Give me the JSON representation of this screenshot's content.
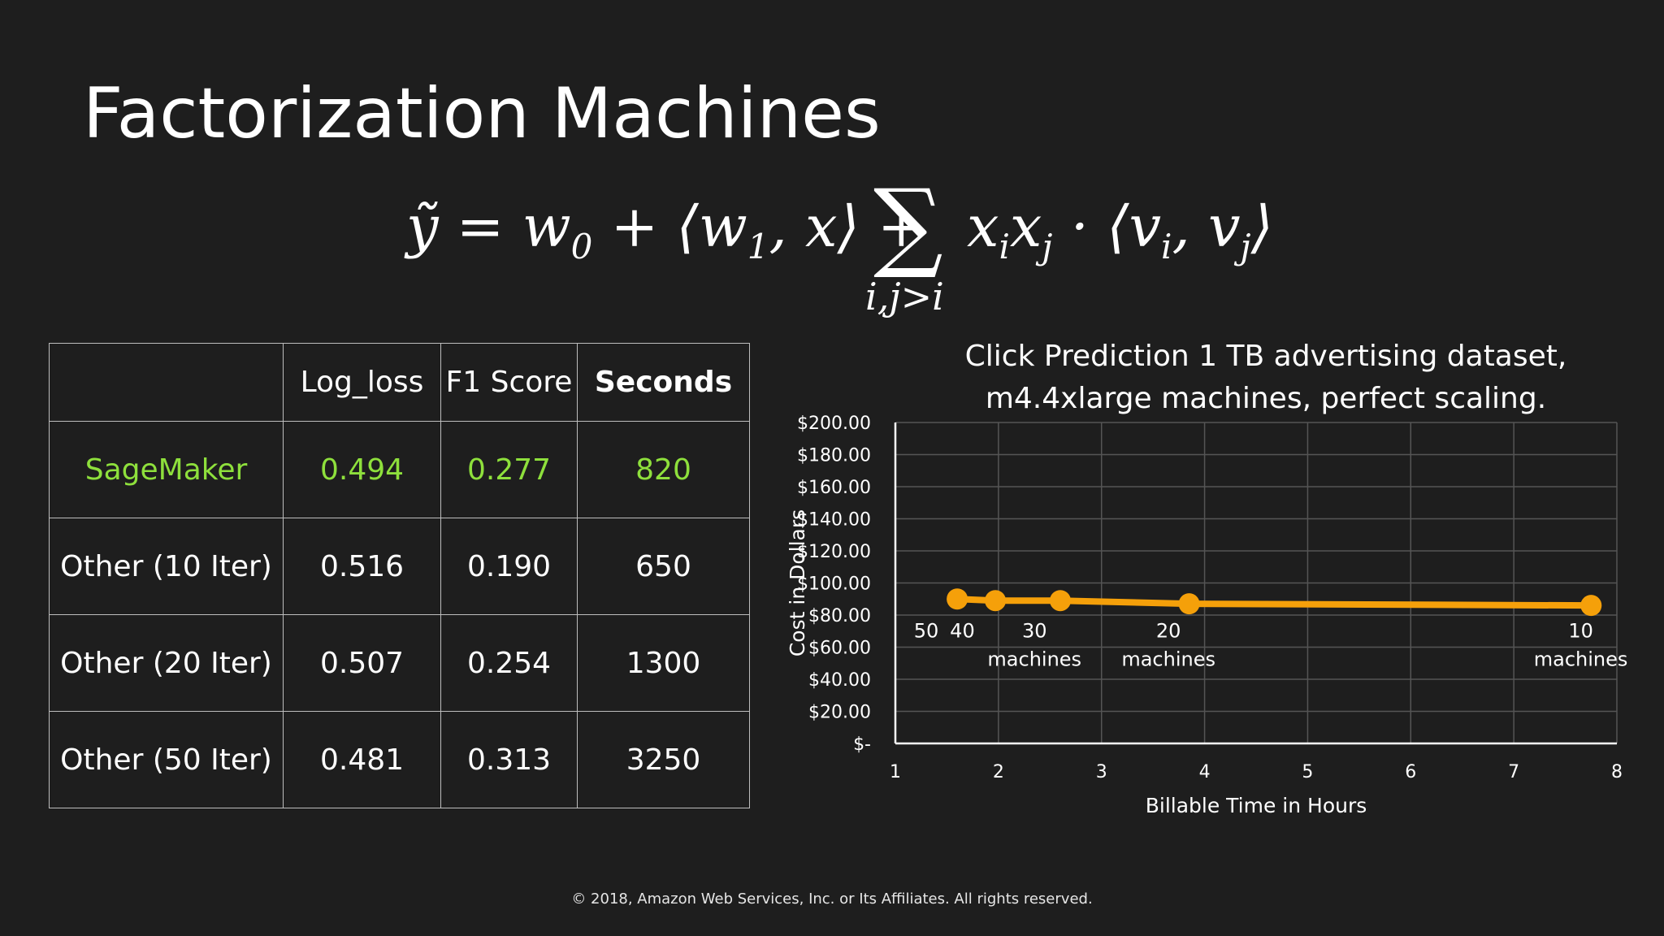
{
  "title": "Factorization Machines",
  "formula": {
    "main": "ỹ = w0 + ⟨w1, x⟩ +",
    "sigma": "∑",
    "under": "i,j>i",
    "rest": "xixj · ⟨vi, vj⟩"
  },
  "table": {
    "headers": [
      "",
      "Log_loss",
      "F1 Score",
      "Seconds"
    ],
    "rows": [
      {
        "name": "SageMaker",
        "log_loss": "0.494",
        "f1": "0.277",
        "seconds": "820"
      },
      {
        "name": "Other (10 Iter)",
        "log_loss": "0.516",
        "f1": "0.190",
        "seconds": "650"
      },
      {
        "name": "Other (20 Iter)",
        "log_loss": "0.507",
        "f1": "0.254",
        "seconds": "1300"
      },
      {
        "name": "Other (50 Iter)",
        "log_loss": "0.481",
        "f1": "0.313",
        "seconds": "3250"
      }
    ],
    "highlight_color": "#8ee03c"
  },
  "chart_data": {
    "type": "line",
    "title_lines": [
      "Click Prediction 1 TB advertising dataset,",
      "m4.4xlarge machines, perfect scaling."
    ],
    "xlabel": "Billable Time in Hours",
    "ylabel": "Cost in Dollars",
    "xlim": [
      1,
      8
    ],
    "ylim": [
      0,
      200
    ],
    "x_ticks": [
      "1",
      "2",
      "3",
      "4",
      "5",
      "6",
      "7",
      "8"
    ],
    "y_ticks": [
      "$-",
      "$20.00",
      "$40.00",
      "$60.00",
      "$80.00",
      "$100.00",
      "$120.00",
      "$140.00",
      "$160.00",
      "$180.00",
      "$200.00"
    ],
    "grid": true,
    "series": [
      {
        "color": "#f5a00a",
        "x": [
          1.6,
          1.97,
          2.6,
          3.85,
          7.75
        ],
        "y": [
          90,
          89,
          89,
          87,
          86
        ]
      }
    ],
    "annotations": [
      {
        "x": 1.3,
        "y": 66,
        "lines": [
          "50"
        ]
      },
      {
        "x": 1.65,
        "y": 66,
        "lines": [
          "40"
        ]
      },
      {
        "x": 2.35,
        "y": 66,
        "lines": [
          "30",
          "machines"
        ]
      },
      {
        "x": 3.65,
        "y": 66,
        "lines": [
          "20",
          "machines"
        ]
      },
      {
        "x": 7.65,
        "y": 66,
        "lines": [
          "10",
          "machines"
        ]
      }
    ]
  },
  "copyright": "© 2018, Amazon Web Services, Inc. or Its Affiliates. All rights reserved."
}
